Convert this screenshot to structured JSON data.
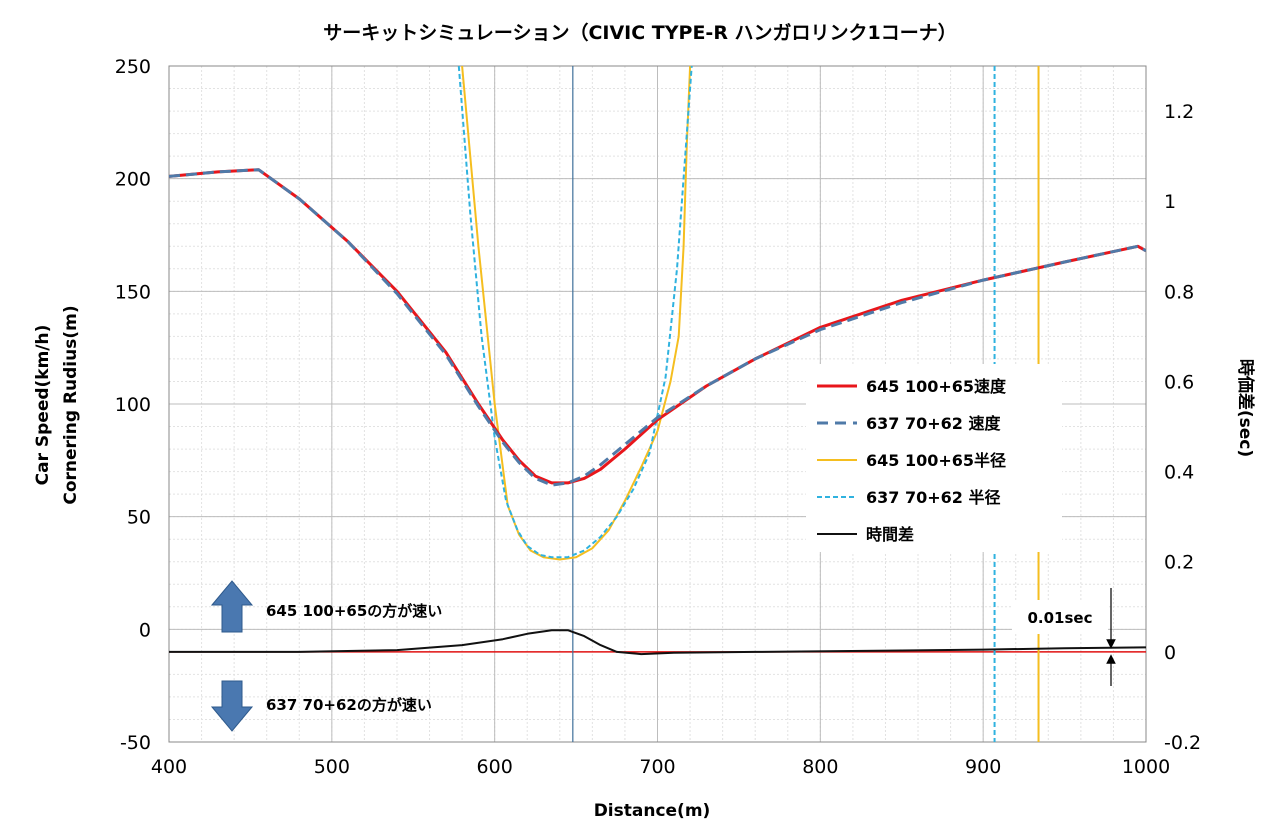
{
  "chart_data": {
    "type": "line",
    "title": "サーキットシミュレーション（CIVIC TYPE-R ハンガロリンク1コーナ）",
    "xlabel": "Distance(m)",
    "ylabel_lines": [
      "Car Speed(km/h)",
      "Cornering Rudius(m)"
    ],
    "y2label": "時価差(sec)",
    "xlim": [
      400,
      1000
    ],
    "ylim": [
      -50,
      250
    ],
    "y2lim": [
      -0.2,
      1.3
    ],
    "x_ticks": [
      400,
      500,
      600,
      700,
      800,
      900,
      1000
    ],
    "y_ticks": [
      -50,
      0,
      50,
      100,
      150,
      200,
      250
    ],
    "y2_ticks": [
      -0.2,
      0,
      0.2,
      0.4,
      0.6,
      0.8,
      1,
      1.2
    ],
    "y2_tick_labels": [
      "-0.2",
      "0",
      "0.2",
      "0.4",
      "0.6",
      "0.8",
      "1",
      "1.2"
    ],
    "grid": true,
    "legend_position": "right",
    "series": [
      {
        "name": "645 100+65速度",
        "axis": "y",
        "color": "#e8161b",
        "style": "solid",
        "x": [
          400,
          430,
          455,
          480,
          510,
          540,
          570,
          590,
          605,
          615,
          625,
          635,
          645,
          655,
          665,
          680,
          700,
          730,
          760,
          800,
          850,
          900,
          950,
          995,
          1000
        ],
        "y": [
          201,
          203,
          204,
          191,
          172,
          150,
          123,
          100,
          84,
          75,
          68,
          65,
          65,
          67,
          71,
          80,
          93,
          108,
          120,
          134,
          146,
          155,
          163,
          170,
          168
        ]
      },
      {
        "name": "637 70+62 速度",
        "axis": "y",
        "color": "#4f7aa8",
        "style": "dashed",
        "x": [
          400,
          430,
          455,
          480,
          510,
          540,
          570,
          590,
          605,
          615,
          625,
          635,
          645,
          655,
          665,
          680,
          700,
          730,
          760,
          800,
          850,
          900,
          950,
          995,
          1000
        ],
        "y": [
          201,
          203,
          204,
          191,
          172,
          149,
          122,
          99,
          83,
          74,
          67,
          64,
          65,
          68,
          73,
          82,
          94,
          108,
          120,
          133,
          145,
          155,
          163,
          170,
          168
        ]
      },
      {
        "name": "645 100+65半径",
        "axis": "y",
        "color": "#f5be1f",
        "style": "solid",
        "x": [
          580,
          590,
          600,
          608,
          615,
          622,
          630,
          640,
          650,
          660,
          670,
          680,
          690,
          700,
          708,
          713,
          716,
          718,
          720
        ],
        "y": [
          250,
          170,
          100,
          55,
          42,
          35,
          32,
          31,
          32,
          36,
          44,
          57,
          72,
          88,
          110,
          130,
          170,
          215,
          250
        ]
      },
      {
        "name": "637 70+62 半径",
        "axis": "y",
        "color": "#2fb2df",
        "style": "dashed",
        "x": [
          578,
          585,
          592,
          600,
          607,
          614,
          620,
          628,
          635,
          645,
          655,
          665,
          675,
          685,
          695,
          705,
          712,
          717,
          721
        ],
        "y": [
          250,
          185,
          130,
          85,
          57,
          44,
          37,
          33,
          32,
          32,
          35,
          41,
          50,
          62,
          78,
          112,
          160,
          210,
          250
        ]
      },
      {
        "name": "時間差",
        "axis": "y2",
        "color": "#111111",
        "style": "solid",
        "x": [
          400,
          480,
          540,
          580,
          605,
          620,
          635,
          645,
          655,
          665,
          675,
          690,
          710,
          760,
          850,
          900,
          950,
          1000
        ],
        "y": [
          0,
          0,
          0.004,
          0.015,
          0.028,
          0.04,
          0.048,
          0.048,
          0.035,
          0.015,
          0,
          -0.005,
          -0.002,
          0,
          0.003,
          0.005,
          0.008,
          0.01
        ]
      }
    ],
    "reference_lines": [
      {
        "name": "zero-time-line",
        "axis": "y2",
        "orientation": "horizontal",
        "value": 0,
        "color": "#e01010",
        "style": "solid"
      },
      {
        "name": "corner-apex-line",
        "axis": "x",
        "orientation": "vertical",
        "value": 648,
        "color": "#3f6f9a",
        "style": "solid"
      },
      {
        "name": "radius-end-637-line",
        "axis": "x",
        "orientation": "vertical",
        "value": 907,
        "color": "#2fb2df",
        "style": "dashed"
      },
      {
        "name": "radius-end-645-line",
        "axis": "x",
        "orientation": "vertical",
        "value": 934,
        "color": "#f5be1f",
        "style": "solid"
      }
    ],
    "annotations": {
      "faster_645": "645 100+65の方が速い",
      "faster_637": "637 70+62の方が速い",
      "scale_label": "0.01sec",
      "arrow_color": "#4a78b0"
    }
  }
}
